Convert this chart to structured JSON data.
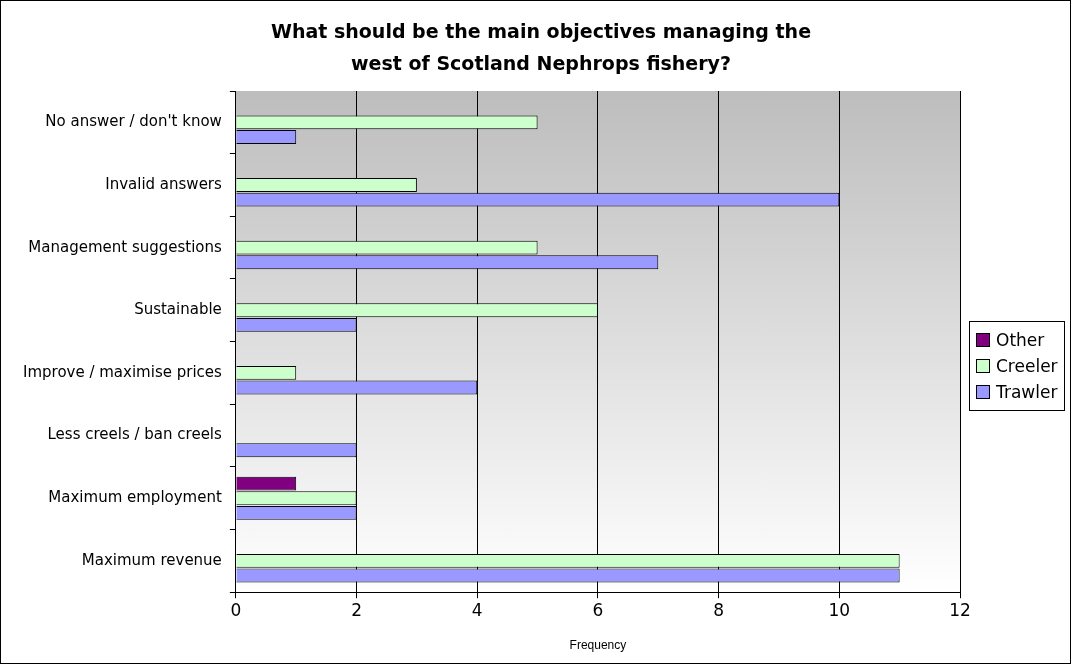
{
  "chart_data": {
    "type": "bar",
    "orientation": "horizontal",
    "title": "What should be the main objectives managing the west of Scotland Nephrops fishery?",
    "xlabel": "Frequency",
    "categories": [
      "No answer / don't know",
      "Invalid answers",
      "Management suggestions",
      "Sustainable",
      "Improve / maximise prices",
      "Less creels / ban creels",
      "Maximum employment",
      "Maximum revenue"
    ],
    "series": [
      {
        "name": "Other",
        "color": "#800080",
        "values": [
          null,
          null,
          null,
          null,
          null,
          null,
          1,
          null
        ]
      },
      {
        "name": "Creeler",
        "color": "#ccffcc",
        "values": [
          5,
          3,
          5,
          6,
          1,
          null,
          2,
          11
        ]
      },
      {
        "name": "Trawler",
        "color": "#9999ff",
        "values": [
          1,
          10,
          7,
          2,
          4,
          2,
          2,
          11
        ]
      }
    ],
    "xlim": [
      0,
      12
    ],
    "xticks": [
      0,
      2,
      4,
      6,
      8,
      10,
      12
    ],
    "grid": "x",
    "legend": "right"
  }
}
